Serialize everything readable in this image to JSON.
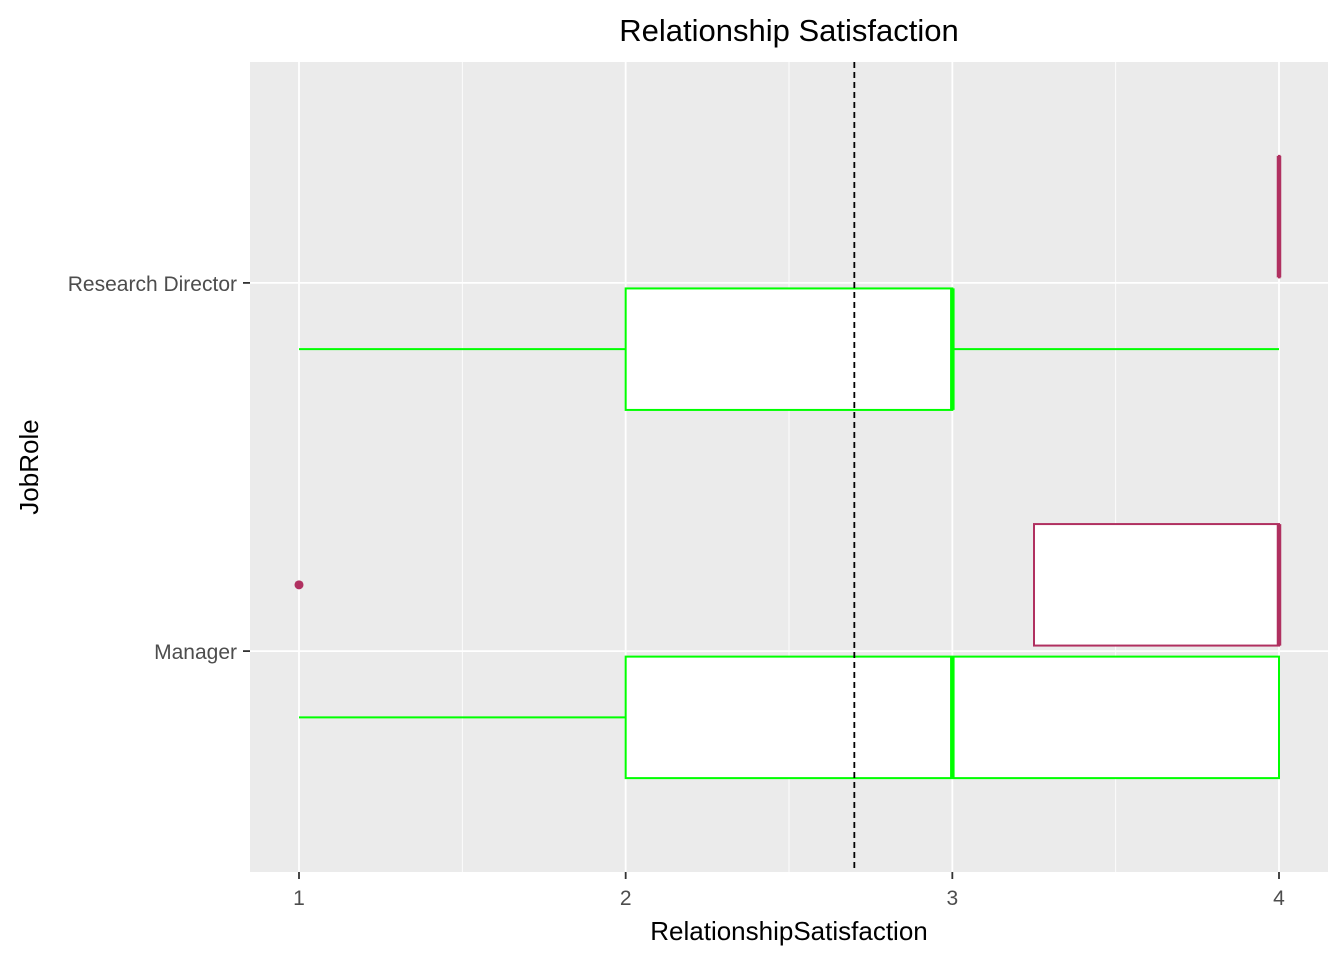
{
  "chart_data": {
    "type": "boxplot",
    "title": "Relationship Satisfaction",
    "xlabel": "RelationshipSatisfaction",
    "ylabel": "JobRole",
    "orientation": "horizontal",
    "xlim": [
      0.85,
      4.15
    ],
    "x_ticks": [
      "1",
      "2",
      "3",
      "4"
    ],
    "x_tick_values": [
      1,
      2,
      3,
      4
    ],
    "categories": [
      "Manager",
      "Research Director"
    ],
    "reference_line": {
      "x": 2.7,
      "style": "dashed",
      "color": "#000000"
    },
    "grid": true,
    "panel_background": "#EBEBEB",
    "legend": "none",
    "series": [
      {
        "color": "#00FF00",
        "boxes": [
          {
            "category": "Manager",
            "min": 1,
            "q1": 2,
            "median": 3,
            "q3": 4,
            "max": 4,
            "outliers": []
          },
          {
            "category": "Research Director",
            "min": 1,
            "q1": 2,
            "median": 3,
            "q3": 3,
            "max": 4,
            "outliers": []
          }
        ]
      },
      {
        "color": "#B03060",
        "boxes": [
          {
            "category": "Manager",
            "min": 3.25,
            "q1": 3.25,
            "median": 4,
            "q3": 4,
            "max": 4,
            "outliers": [
              1
            ]
          },
          {
            "category": "Research Director",
            "min": 4,
            "q1": 4,
            "median": 4,
            "q3": 4,
            "max": 4,
            "outliers": []
          }
        ]
      }
    ]
  }
}
